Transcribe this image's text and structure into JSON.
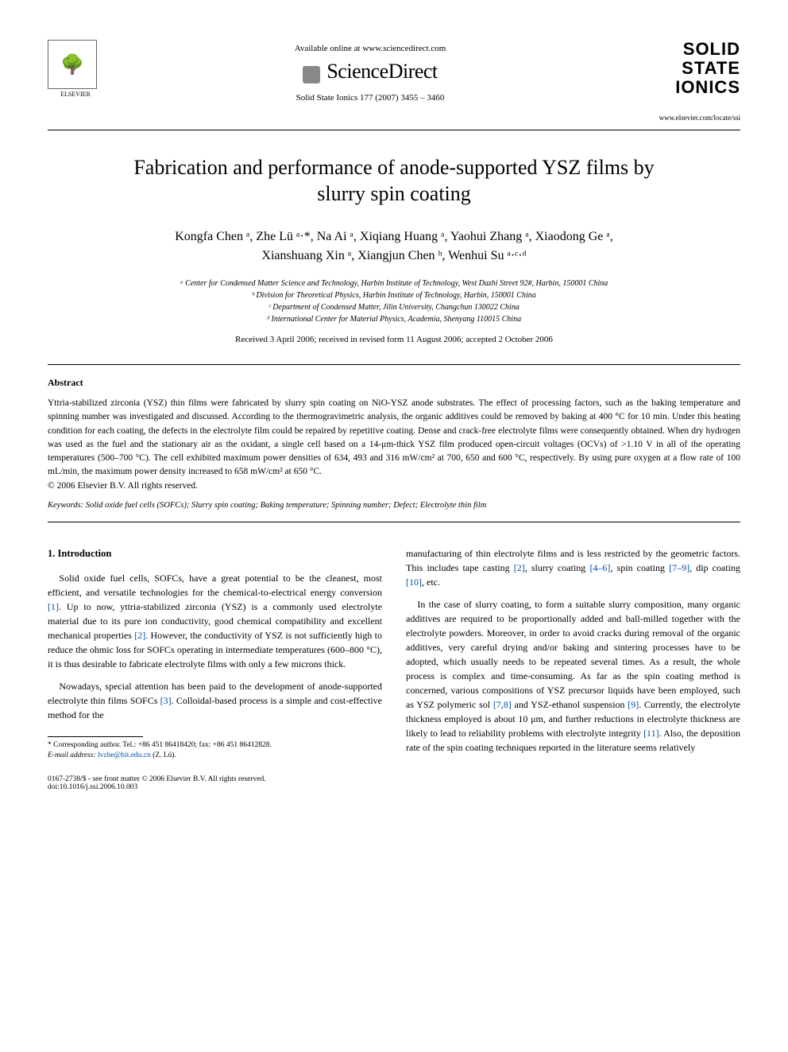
{
  "header": {
    "available_online": "Available online at www.sciencedirect.com",
    "sciencedirect": "ScienceDirect",
    "journal_ref": "Solid State Ionics 177 (2007) 3455 – 3460",
    "elsevier_label": "ELSEVIER",
    "journal_logo_line1": "SOLID",
    "journal_logo_line2": "STATE",
    "journal_logo_line3": "IONICS",
    "journal_url": "www.elsevier.com/locate/ssi"
  },
  "title": "Fabrication and performance of anode-supported YSZ films by slurry spin coating",
  "authors_line1": "Kongfa Chen ᵃ, Zhe Lü ᵃ·*, Na Ai ᵃ, Xiqiang Huang ᵃ, Yaohui Zhang ᵃ, Xiaodong Ge ᵃ,",
  "authors_line2": "Xianshuang Xin ᵃ, Xiangjun Chen ᵇ, Wenhui Su ᵃ·ᶜ·ᵈ",
  "affiliations": {
    "a": "ᵃ Center for Condensed Matter Science and Technology, Harbin Institute of Technology, West Dazhi Street 92#, Harbin, 150001 China",
    "b": "ᵇ Division for Theoretical Physics, Harbin Institute of Technology, Harbin, 150001 China",
    "c": "ᶜ Department of Condensed Matter, Jilin University, Changchun 130022 China",
    "d": "ᵈ International Center for Material Physics, Academia, Shenyang 110015 China"
  },
  "dates": "Received 3 April 2006; received in revised form 11 August 2006; accepted 2 October 2006",
  "abstract": {
    "heading": "Abstract",
    "text": "Yttria-stabilized zirconia (YSZ) thin films were fabricated by slurry spin coating on NiO-YSZ anode substrates. The effect of processing factors, such as the baking temperature and spinning number was investigated and discussed. According to the thermogravimetric analysis, the organic additives could be removed by baking at 400 °C for 10 min. Under this heating condition for each coating, the defects in the electrolyte film could be repaired by repetitive coating. Dense and crack-free electrolyte films were consequently obtained. When dry hydrogen was used as the fuel and the stationary air as the oxidant, a single cell based on a 14-μm-thick YSZ film produced open-circuit voltages (OCVs) of >1.10 V in all of the operating temperatures (500–700 °C). The cell exhibited maximum power densities of 634, 493 and 316 mW/cm² at 700, 650 and 600 °C, respectively. By using pure oxygen at a flow rate of 100 mL/min, the maximum power density increased to 658 mW/cm² at 650 °C.",
    "copyright": "© 2006 Elsevier B.V. All rights reserved."
  },
  "keywords": {
    "label": "Keywords:",
    "text": "Solid oxide fuel cells (SOFCs); Slurry spin coating; Baking temperature; Spinning number; Defect; Electrolyte thin film"
  },
  "body": {
    "section_heading": "1. Introduction",
    "left_p1_a": "Solid oxide fuel cells, SOFCs, have a great potential to be the cleanest, most efficient, and versatile technologies for the chemical-to-electrical energy conversion ",
    "ref1": "[1]",
    "left_p1_b": ". Up to now, yttria-stabilized zirconia (YSZ) is a commonly used electrolyte material due to its pure ion conductivity, good chemical compatibility and excellent mechanical properties ",
    "ref2": "[2]",
    "left_p1_c": ". However, the conductivity of YSZ is not sufficiently high to reduce the ohmic loss for SOFCs operating in intermediate temperatures (600–800 °C), it is thus desirable to fabricate electrolyte films with only a few microns thick.",
    "left_p2_a": "Nowadays, special attention has been paid to the development of anode-supported electrolyte thin films SOFCs ",
    "ref3": "[3]",
    "left_p2_b": ". Colloidal-based process is a simple and cost-effective method for the",
    "right_p1_a": "manufacturing of thin electrolyte films and is less restricted by the geometric factors. This includes tape casting ",
    "ref2b": "[2]",
    "right_p1_b": ", slurry coating ",
    "ref46": "[4–6]",
    "right_p1_c": ", spin coating ",
    "ref79": "[7–9]",
    "right_p1_d": ", dip coating ",
    "ref10": "[10]",
    "right_p1_e": ", etc.",
    "right_p2_a": "In the case of slurry coating, to form a suitable slurry composition, many organic additives are required to be proportionally added and ball-milled together with the electrolyte powders. Moreover, in order to avoid cracks during removal of the organic additives, very careful drying and/or baking and sintering processes have to be adopted, which usually needs to be repeated several times. As a result, the whole process is complex and time-consuming. As far as the spin coating method is concerned, various compositions of YSZ precursor liquids have been employed, such as YSZ polymeric sol ",
    "ref78": "[7,8]",
    "right_p2_b": " and YSZ-ethanol suspension ",
    "ref9": "[9]",
    "right_p2_c": ". Currently, the electrolyte thickness employed is about 10 μm, and further reductions in electrolyte thickness are likely to lead to reliability problems with electrolyte integrity ",
    "ref11": "[11]",
    "right_p2_d": ". Also, the deposition rate of the spin coating techniques reported in the literature seems relatively"
  },
  "footnote": {
    "corr": "* Corresponding author. Tel.: +86 451 86418420; fax: +86 451 86412828.",
    "email_label": "E-mail address:",
    "email": "lvzhe@hit.edu.cn",
    "email_name": "(Z. Lü)."
  },
  "footer": {
    "line1": "0167-2738/$ - see front matter © 2006 Elsevier B.V. All rights reserved.",
    "line2": "doi:10.1016/j.ssi.2006.10.003"
  }
}
